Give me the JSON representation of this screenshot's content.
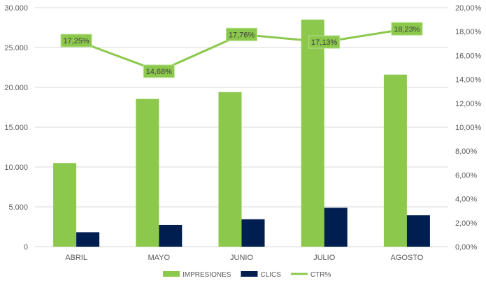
{
  "chart_data": {
    "type": "bar",
    "categories": [
      "ABRIL",
      "MAYO",
      "JUNIO",
      "JULIO",
      "AGOSTO"
    ],
    "series": [
      {
        "name": "IMPRESIONES",
        "type": "bar",
        "axis": "left",
        "color": "#8BC84B",
        "values": [
          10500,
          18550,
          19400,
          28500,
          21600
        ]
      },
      {
        "name": "CLICS",
        "type": "bar",
        "axis": "left",
        "color": "#001E50",
        "values": [
          1811,
          2723,
          3445,
          4882,
          3938
        ]
      },
      {
        "name": "CTR%",
        "type": "line",
        "axis": "right",
        "color": "#8BC84B",
        "values": [
          17.25,
          14.68,
          17.76,
          17.13,
          18.23
        ],
        "labels": [
          "17,25%",
          "14,68%",
          "17,76%",
          "17,13%",
          "18,23%"
        ]
      }
    ],
    "y_left": {
      "ylim": [
        0,
        30000
      ],
      "ticks": [
        "0",
        "5.000",
        "10.000",
        "15.000",
        "20.000",
        "25.000",
        "30.000"
      ]
    },
    "y_right": {
      "ylim": [
        0,
        20
      ],
      "ticks": [
        "0,00%",
        "2,00%",
        "4,00%",
        "6,00%",
        "8,00%",
        "10,00%",
        "12,00%",
        "14,00%",
        "16,00%",
        "18,00%",
        "20,00%"
      ]
    },
    "grid": true,
    "legend": "bottom",
    "title": "",
    "xlabel": "",
    "ylabel": ""
  }
}
